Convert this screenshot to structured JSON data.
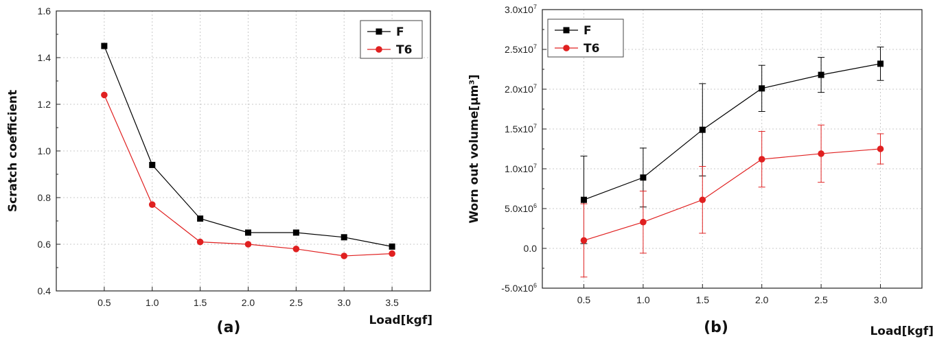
{
  "chart_data": [
    {
      "type": "line",
      "panel_label": "(a)",
      "xlabel": "Load[kgf]",
      "ylabel": "Scratch coefficient",
      "x": [
        0.5,
        1.0,
        1.5,
        2.0,
        2.5,
        3.0,
        3.5
      ],
      "x_ticks": [
        "0.5",
        "1.0",
        "1.5",
        "2.0",
        "2.5",
        "3.0",
        "3.5"
      ],
      "xlim": [
        0.0,
        3.9
      ],
      "y_ticks": [
        "0.4",
        "0.6",
        "0.8",
        "1.0",
        "1.2",
        "1.4",
        "1.6"
      ],
      "ylim": [
        0.4,
        1.6
      ],
      "grid": true,
      "legend_position": "top-right",
      "series": [
        {
          "name": "F",
          "color": "#000000",
          "marker": "square",
          "values": [
            1.45,
            0.94,
            0.71,
            0.65,
            0.65,
            0.63,
            0.59
          ]
        },
        {
          "name": "T6",
          "color": "#e02020",
          "marker": "circle",
          "values": [
            1.24,
            0.77,
            0.61,
            0.6,
            0.58,
            0.55,
            0.56
          ]
        }
      ]
    },
    {
      "type": "line",
      "panel_label": "(b)",
      "xlabel": "Load[kgf]",
      "ylabel": "Worn out volume[μm³]",
      "x": [
        0.5,
        1.0,
        1.5,
        2.0,
        2.5,
        3.0
      ],
      "x_ticks": [
        "0.5",
        "1.0",
        "1.5",
        "2.0",
        "2.5",
        "3.0"
      ],
      "xlim": [
        0.15,
        3.35
      ],
      "y_ticks": [
        "-5.0x10⁶",
        "0.0",
        "5.0x10⁶",
        "1.0x10⁷",
        "1.5x10⁷",
        "2.0x10⁷",
        "2.5x10⁷",
        "3.0x10⁷"
      ],
      "ylim": [
        -5000000,
        30000000
      ],
      "grid": true,
      "legend_position": "top-left",
      "series": [
        {
          "name": "F",
          "color": "#000000",
          "marker": "square",
          "values": [
            6100000,
            8900000,
            14900000,
            20100000,
            21800000,
            23200000
          ],
          "error": [
            5500000,
            3700000,
            5800000,
            2900000,
            2200000,
            2100000
          ]
        },
        {
          "name": "T6",
          "color": "#e02020",
          "marker": "circle",
          "values": [
            1000000,
            3300000,
            6100000,
            11200000,
            11900000,
            12500000
          ],
          "error": [
            4600000,
            3900000,
            4200000,
            3500000,
            3600000,
            1900000
          ]
        }
      ]
    }
  ]
}
